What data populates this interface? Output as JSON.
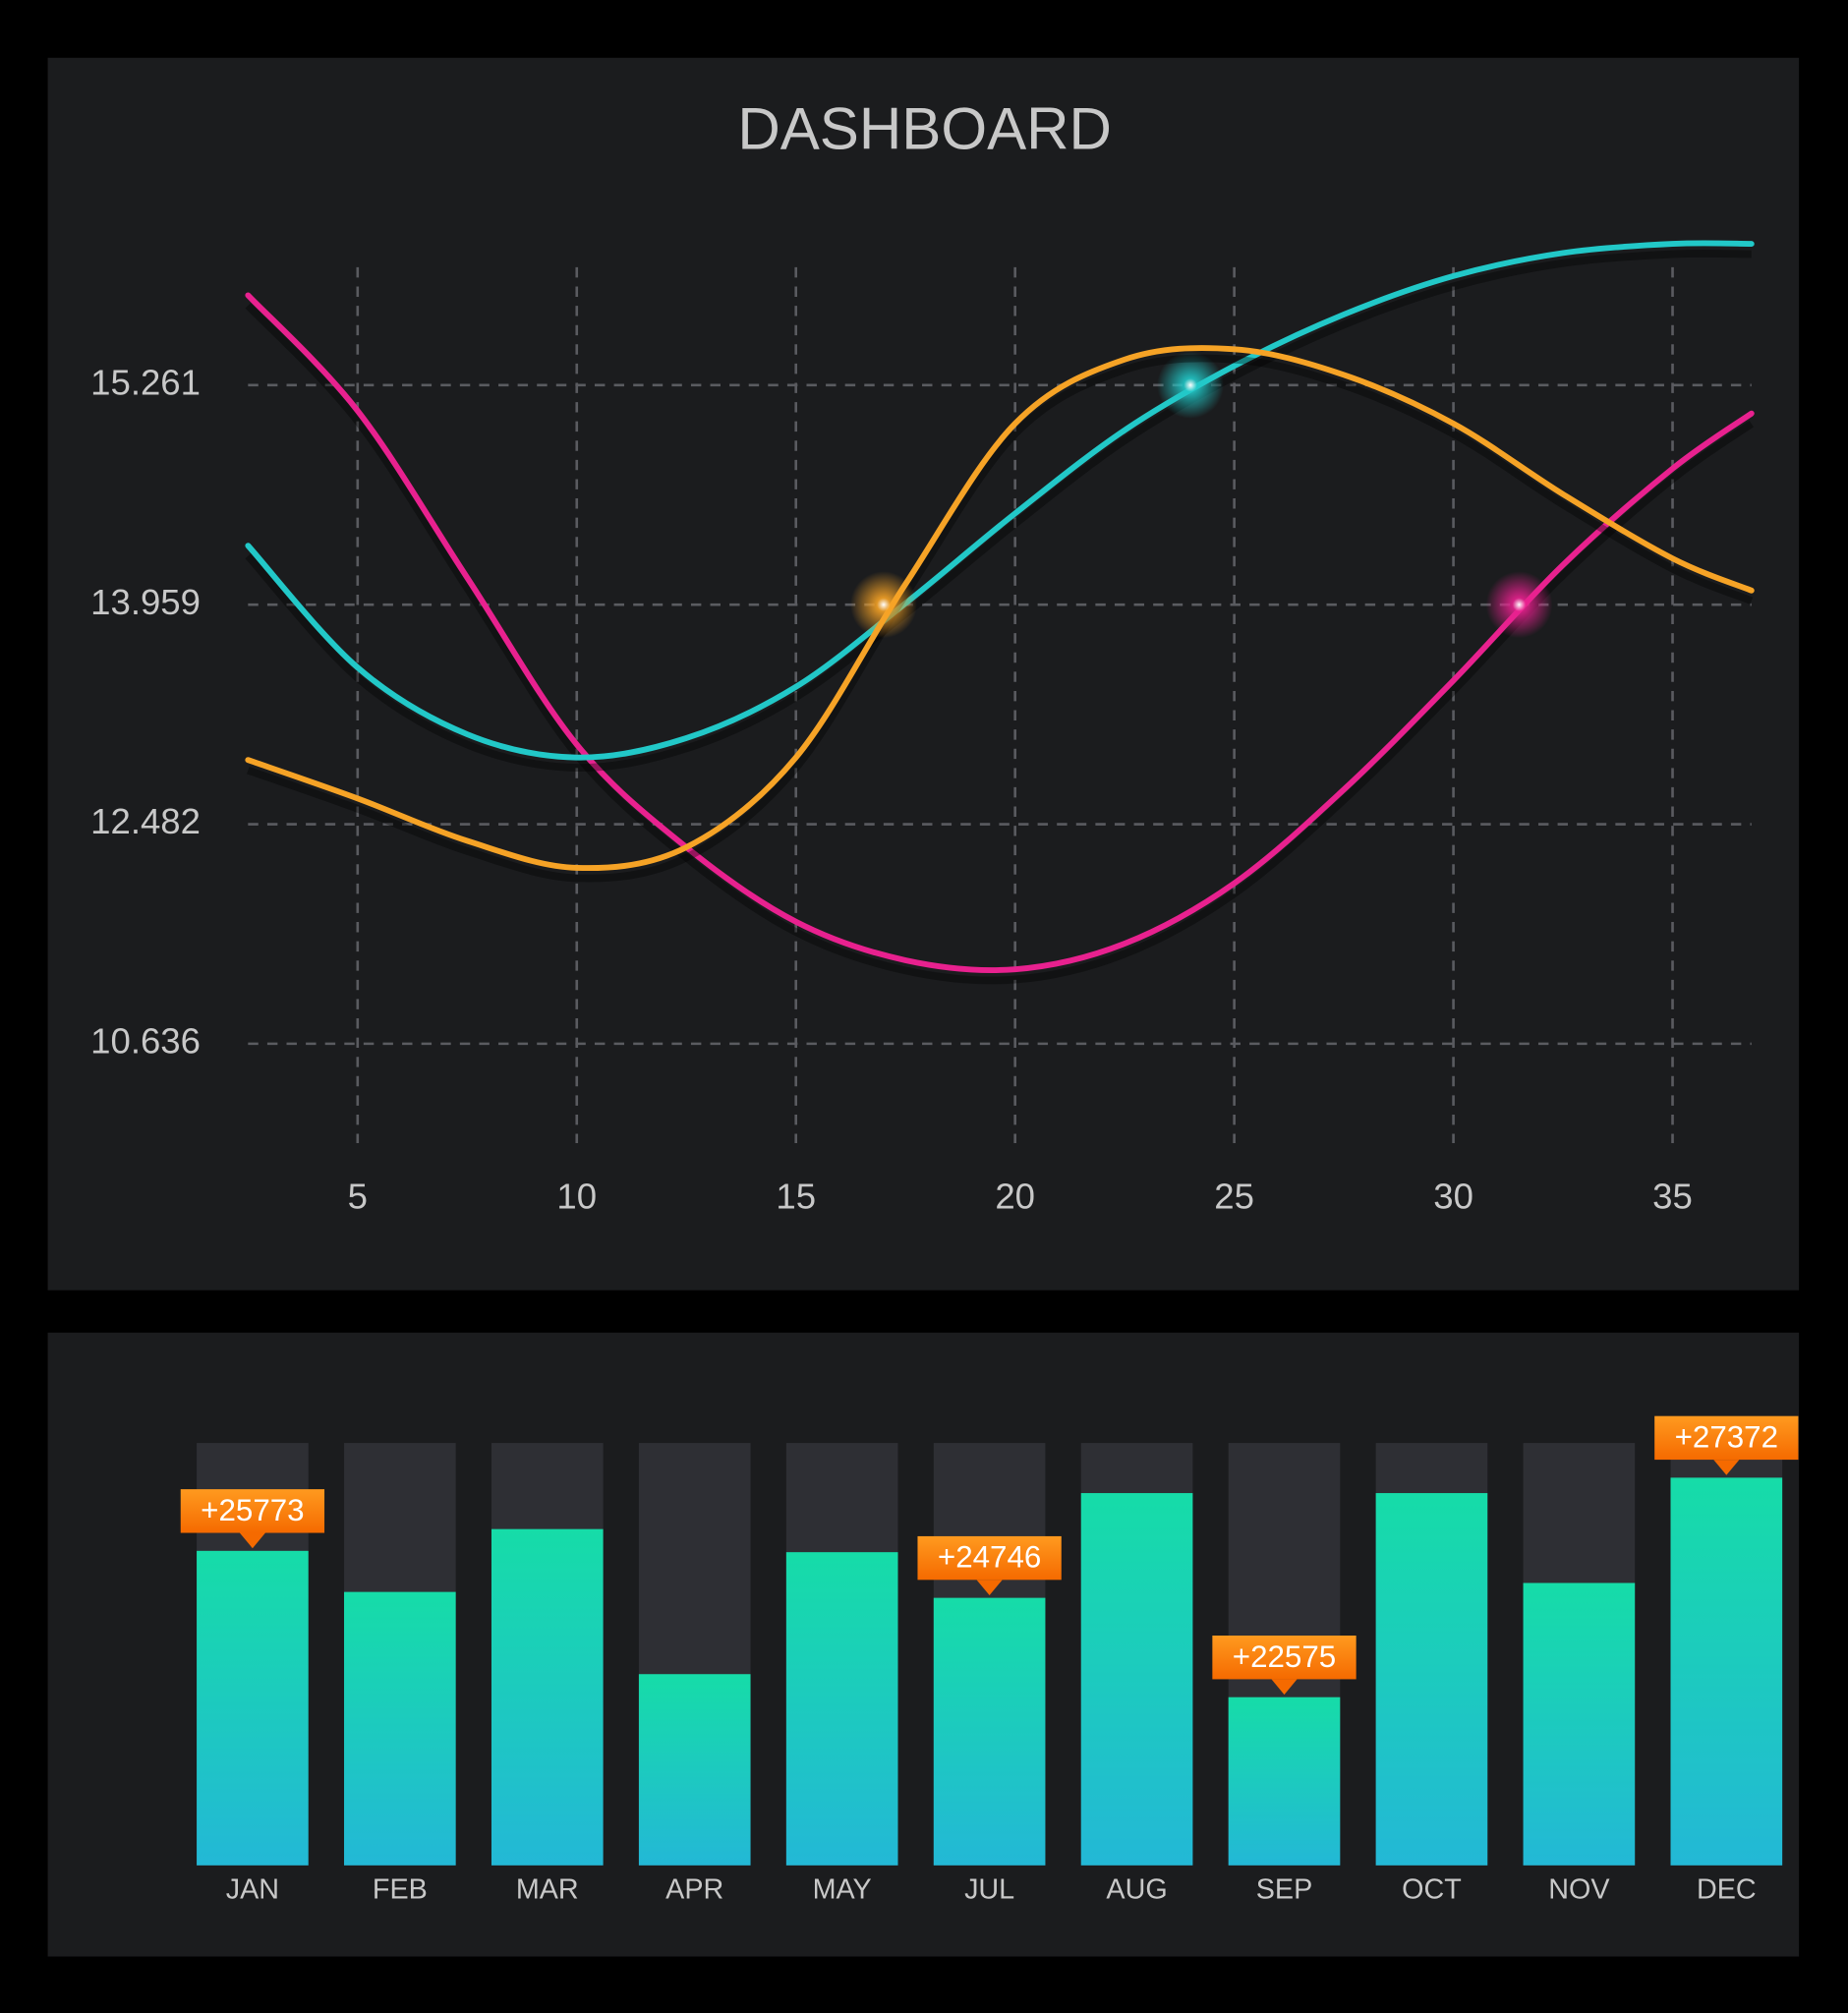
{
  "chart_data": [
    {
      "type": "line",
      "title": "DASHBOARD",
      "x": [
        2.5,
        5,
        7.5,
        10,
        12.5,
        15,
        17.5,
        20,
        22.5,
        25,
        27.5,
        30,
        32.5,
        35,
        36.8
      ],
      "xlim": [
        2.5,
        36.8
      ],
      "xticks": [
        5,
        10,
        15,
        20,
        25,
        30,
        35
      ],
      "ylim": [
        9.8,
        15.96
      ],
      "yticks": [
        10.636,
        12.482,
        13.959,
        15.261
      ],
      "grid": true,
      "series": [
        {
          "color": "#e8218f",
          "values": [
            15.794,
            15.109,
            14.119,
            13.018,
            12.288,
            11.662,
            11.338,
            11.262,
            11.478,
            11.985,
            12.715,
            13.449,
            14.195,
            14.766,
            15.093
          ],
          "highlight": [
            31.5,
            13.959
          ]
        },
        {
          "color": "#22c8c8",
          "values": [
            14.309,
            13.536,
            13.087,
            12.931,
            13.061,
            13.406,
            13.967,
            14.5,
            14.994,
            15.375,
            15.68,
            15.908,
            16.045,
            16.099,
            16.099
          ],
          "highlight": [
            24,
            15.261
          ]
        },
        {
          "color": "#f6a326",
          "values": [
            12.914,
            12.655,
            12.342,
            12.115,
            12.288,
            12.931,
            14.081,
            15.033,
            15.413,
            15.474,
            15.322,
            15.033,
            14.614,
            14.233,
            14.043
          ],
          "highlight": [
            17,
            13.959
          ]
        }
      ]
    },
    {
      "type": "bar",
      "categories": [
        "JAN",
        "FEB",
        "MAR",
        "APR",
        "MAY",
        "JUL",
        "AUG",
        "SEP",
        "OCT",
        "NOV",
        "DEC"
      ],
      "values": [
        25773,
        24875,
        26249,
        23079,
        25744,
        24746,
        27035,
        22575,
        27035,
        25071,
        27372
      ],
      "value_labels": [
        "+25773",
        null,
        null,
        null,
        null,
        "+24746",
        null,
        "+22575",
        null,
        null,
        "+27372"
      ],
      "ylim": [
        18900,
        28130
      ],
      "color": "#18d9a8"
    }
  ]
}
